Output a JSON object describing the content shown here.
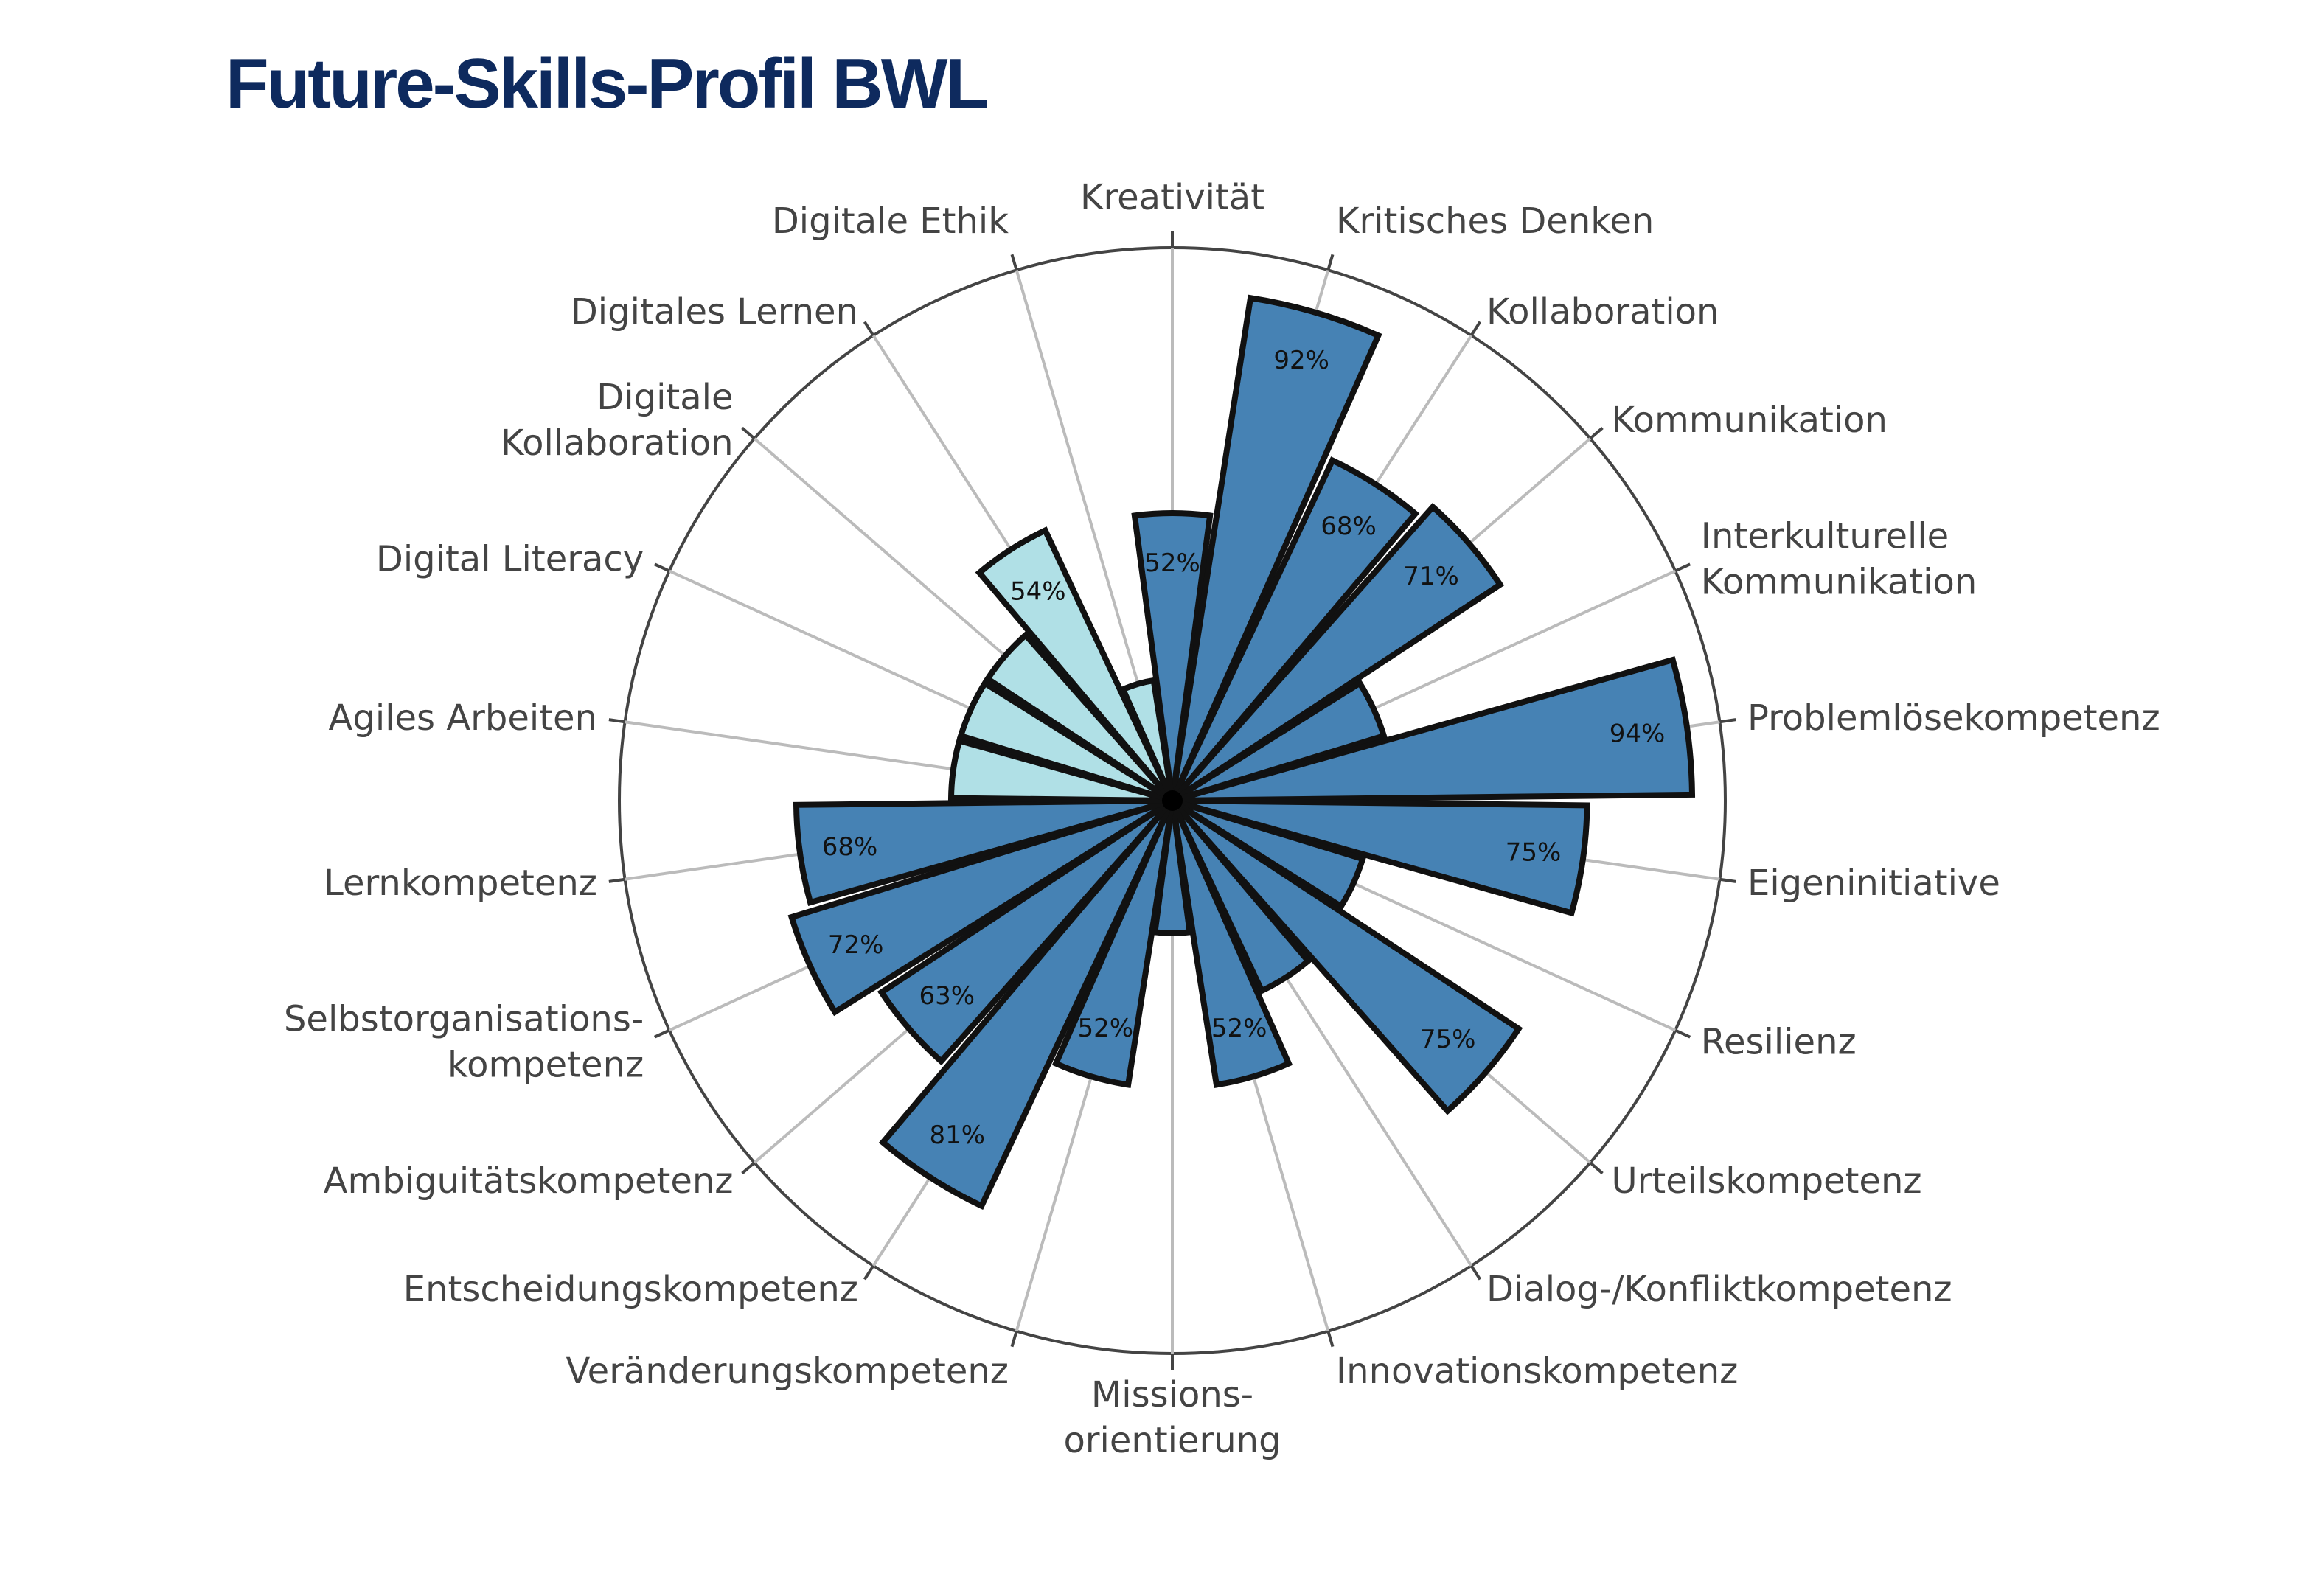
{
  "chart_data": {
    "type": "polar-bar",
    "title": "Future-Skills-Profil BWL",
    "rmax": 100,
    "colors": {
      "dark": "#4682b4",
      "light": "#b0e0e6",
      "outline": "#111111"
    },
    "categories": [
      {
        "label": [
          "Kreativität"
        ],
        "value": 52,
        "shade": "dark",
        "shown": "52%"
      },
      {
        "label": [
          "Kritisches Denken"
        ],
        "value": 92,
        "shade": "dark",
        "shown": "92%"
      },
      {
        "label": [
          "Kollaboration"
        ],
        "value": 68,
        "shade": "dark",
        "shown": "68%"
      },
      {
        "label": [
          "Kommunikation"
        ],
        "value": 71,
        "shade": "dark",
        "shown": "71%"
      },
      {
        "label": [
          "Interkulturelle",
          "Kommunikation"
        ],
        "value": 40,
        "shade": "dark",
        "shown": ""
      },
      {
        "label": [
          "Problemlösekompetenz"
        ],
        "value": 94,
        "shade": "dark",
        "shown": "94%"
      },
      {
        "label": [
          "Eigeninitiative"
        ],
        "value": 75,
        "shade": "dark",
        "shown": "75%"
      },
      {
        "label": [
          "Resilienz"
        ],
        "value": 36,
        "shade": "dark",
        "shown": ""
      },
      {
        "label": [
          "Urteilskompetenz"
        ],
        "value": 75,
        "shade": "dark",
        "shown": "75%"
      },
      {
        "label": [
          "Dialog-/Konfliktkompetenz"
        ],
        "value": 38,
        "shade": "dark",
        "shown": ""
      },
      {
        "label": [
          "Innovationskompetenz"
        ],
        "value": 52,
        "shade": "dark",
        "shown": "52%"
      },
      {
        "label": [
          "Missions-",
          "orientierung"
        ],
        "value": 24,
        "shade": "dark",
        "shown": ""
      },
      {
        "label": [
          "Veränderungskompetenz"
        ],
        "value": 52,
        "shade": "dark",
        "shown": "52%"
      },
      {
        "label": [
          "Entscheidungskompetenz"
        ],
        "value": 81,
        "shade": "dark",
        "shown": "81%"
      },
      {
        "label": [
          "Ambiguitätskompetenz"
        ],
        "value": 63,
        "shade": "dark",
        "shown": "63%"
      },
      {
        "label": [
          "Selbstorganisations-",
          "kompetenz"
        ],
        "value": 72,
        "shade": "dark",
        "shown": "72%"
      },
      {
        "label": [
          "Lernkompetenz"
        ],
        "value": 68,
        "shade": "dark",
        "shown": "68%"
      },
      {
        "label": [
          "Agiles Arbeiten"
        ],
        "value": 40,
        "shade": "light",
        "shown": ""
      },
      {
        "label": [
          "Digital Literacy"
        ],
        "value": 40,
        "shade": "light",
        "shown": ""
      },
      {
        "label": [
          "Digitale",
          "Kollaboration"
        ],
        "value": 40,
        "shade": "light",
        "shown": ""
      },
      {
        "label": [
          "Digitales Lernen"
        ],
        "value": 54,
        "shade": "light",
        "shown": "54%"
      },
      {
        "label": [
          "Digitale Ethik"
        ],
        "value": 22,
        "shade": "light",
        "shown": ""
      }
    ]
  }
}
